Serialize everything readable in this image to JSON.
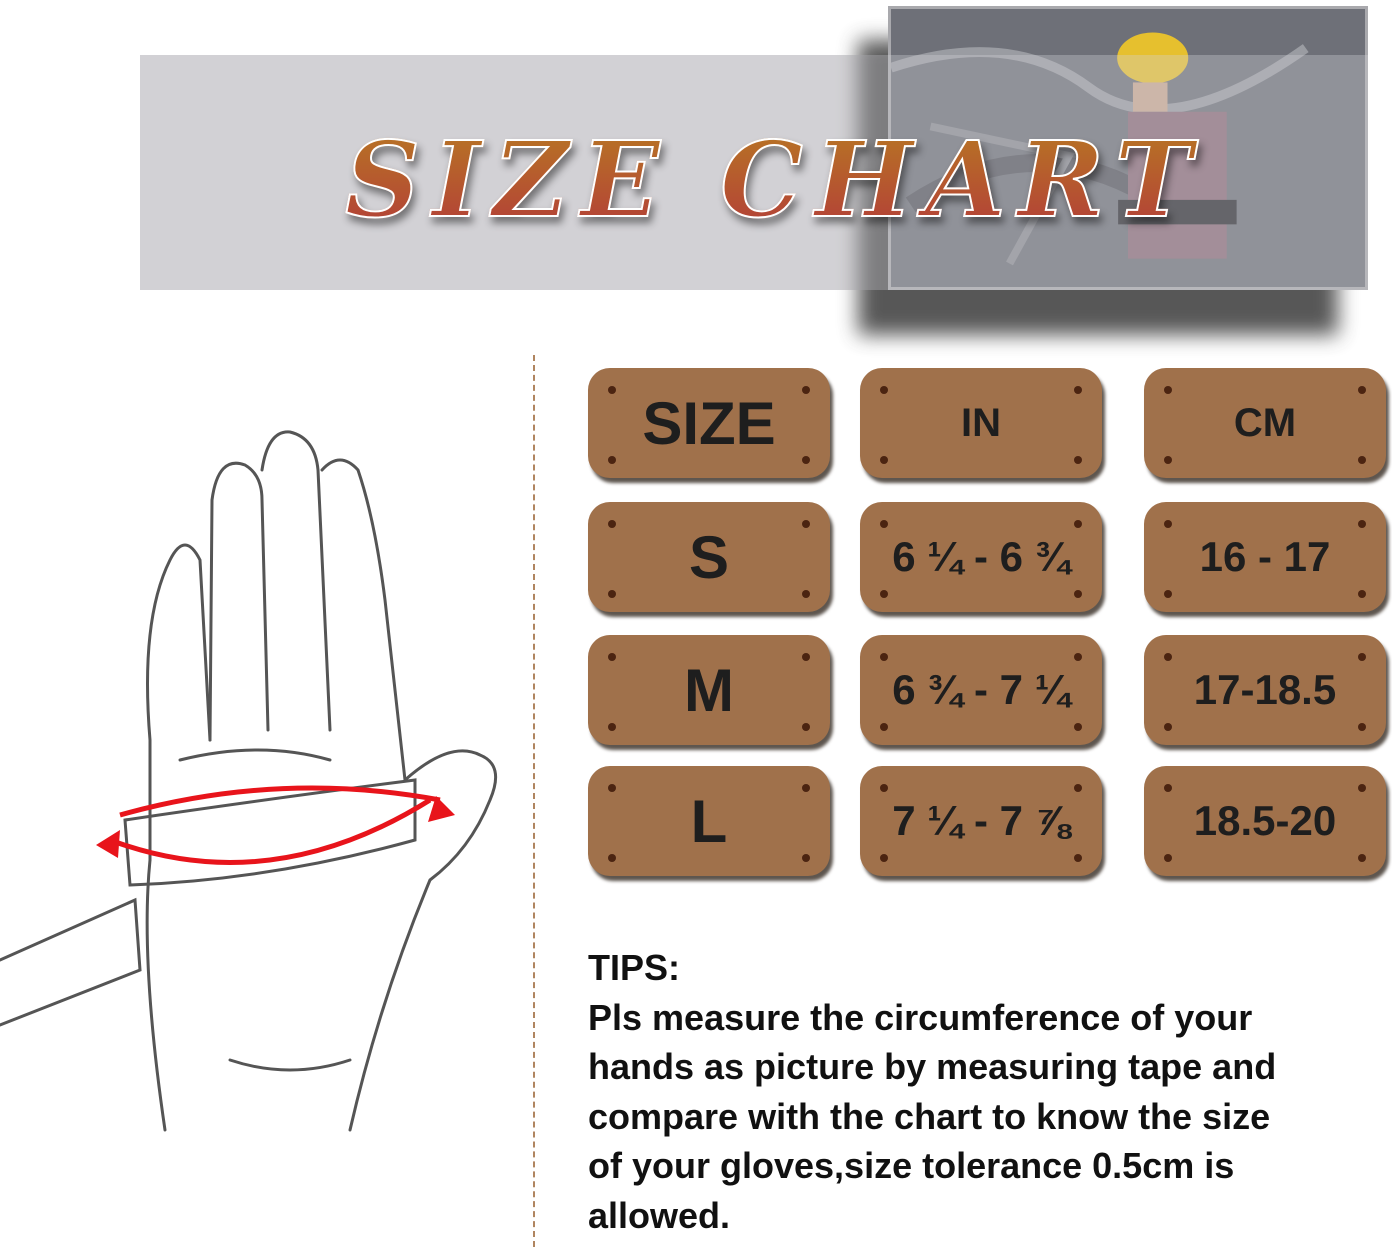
{
  "header": {
    "title": "SIZE CHART"
  },
  "table": {
    "headers": [
      "SIZE",
      "IN",
      "CM"
    ],
    "rows": [
      [
        "S",
        "6 ¼ - 6 ¾",
        "16 - 17"
      ],
      [
        "M",
        "6 ¾ - 7 ¼",
        "17-18.5"
      ],
      [
        "L",
        "7 ¼ - 7 ⅞",
        "18.5-20"
      ]
    ],
    "plate_color": "#a0714b"
  },
  "tips": {
    "heading": "TIPS:",
    "lines": [
      "Pls measure the circumference of your",
      "hands as picture by measuring tape and",
      "compare with the chart to know the size",
      "of your gloves,size tolerance 0.5cm is",
      "allowed."
    ]
  },
  "illustration": {
    "icon": "hand-measuring-tape-icon",
    "arrow_color": "#e8141b"
  }
}
